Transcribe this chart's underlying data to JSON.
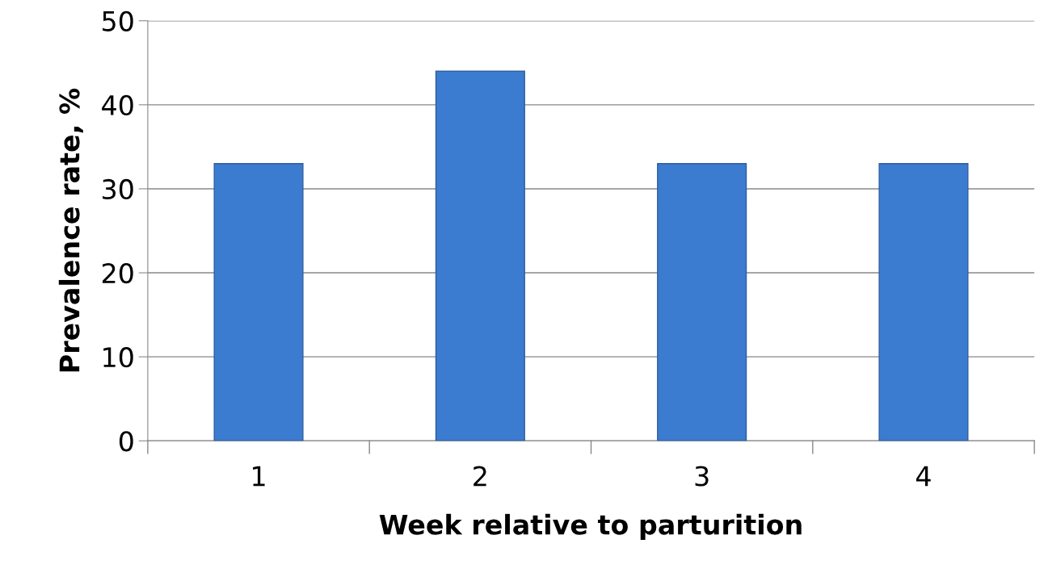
{
  "chart_data": {
    "type": "bar",
    "xlabel": "Week relative to parturition",
    "ylabel": "Prevalence rate, %",
    "categories": [
      "1",
      "2",
      "3",
      "4"
    ],
    "values": [
      33,
      44,
      33,
      33
    ],
    "color": "#3b7bd0",
    "ylim": [
      0,
      50
    ],
    "yticks": [
      0,
      10,
      20,
      30,
      40,
      50
    ],
    "grid": "y",
    "legend": false
  }
}
